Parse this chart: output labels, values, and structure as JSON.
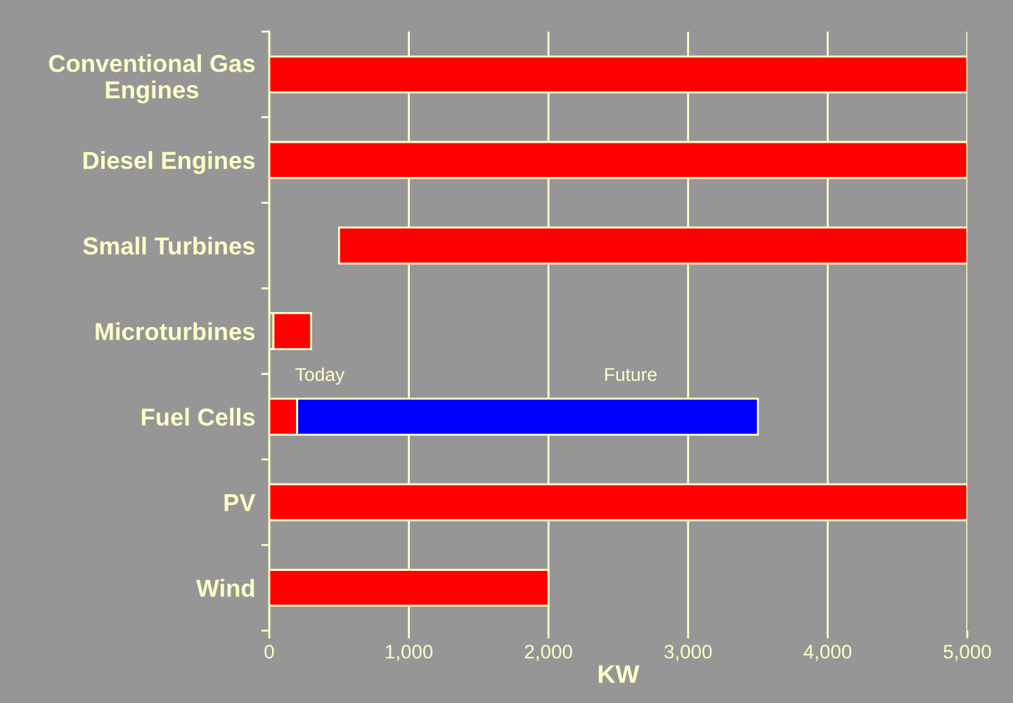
{
  "chart_data": {
    "type": "bar",
    "orientation": "horizontal",
    "xlabel": "KW",
    "categories": [
      "Conventional Gas\nEngines",
      "Diesel Engines",
      "Small Turbines",
      "Microturbines",
      "Fuel Cells",
      "PV",
      "Wind"
    ],
    "series": [
      {
        "color": "#969696",
        "values": [
          null,
          null,
          null,
          30,
          null,
          null,
          null
        ]
      },
      {
        "color": "#ff0000",
        "base": [
          0,
          0,
          500,
          30,
          0,
          0,
          0
        ],
        "values": [
          5000,
          5000,
          4500,
          270,
          200,
          5000,
          2000
        ]
      },
      {
        "color": "#0000ff",
        "base": [
          null,
          null,
          null,
          null,
          200,
          null,
          null
        ],
        "values": [
          null,
          null,
          null,
          null,
          3300,
          null,
          null
        ]
      }
    ],
    "annotations": [
      "Today",
      "Future"
    ],
    "xlim": [
      0,
      5000
    ],
    "xticks": [
      {
        "value": 0,
        "label": "0"
      },
      {
        "value": 1000,
        "label": "1,000"
      },
      {
        "value": 2000,
        "label": "2,000"
      },
      {
        "value": 3000,
        "label": "3,000"
      },
      {
        "value": 4000,
        "label": "4,000"
      },
      {
        "value": 5000,
        "label": "5,000"
      }
    ],
    "grid": "x",
    "legend": false
  }
}
